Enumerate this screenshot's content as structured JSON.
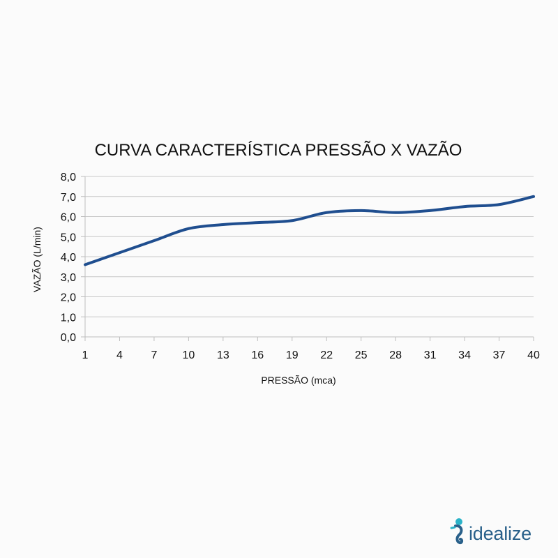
{
  "chart_data": {
    "type": "line",
    "title": "CURVA CARACTERÍSTICA PRESSÃO X VAZÃO",
    "xlabel": "PRESSÃO (mca)",
    "ylabel": "VAZÃO (L/min)",
    "x": [
      1,
      4,
      7,
      10,
      13,
      16,
      19,
      22,
      25,
      28,
      31,
      34,
      37,
      40
    ],
    "x_tick_labels": [
      "1",
      "4",
      "7",
      "10",
      "13",
      "16",
      "19",
      "22",
      "25",
      "28",
      "31",
      "34",
      "37",
      "40"
    ],
    "y_tick_labels": [
      "0,0",
      "1,0",
      "2,0",
      "3,0",
      "4,0",
      "5,0",
      "6,0",
      "7,0",
      "8,0"
    ],
    "ylim": [
      0,
      8
    ],
    "grid": "horizontal",
    "series": [
      {
        "color": "#1f4e8f",
        "values": [
          3.6,
          4.2,
          4.8,
          5.4,
          5.6,
          5.7,
          5.8,
          6.2,
          6.3,
          6.2,
          6.3,
          6.5,
          6.6,
          7.0
        ]
      }
    ]
  },
  "brand": {
    "name": "idealize",
    "color": "#29608a",
    "icon": "seahorse-icon"
  }
}
